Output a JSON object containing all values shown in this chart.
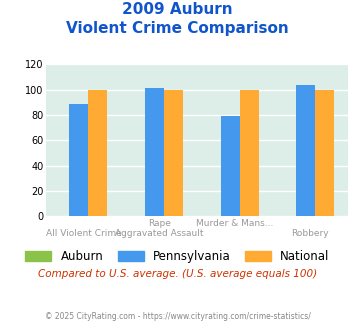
{
  "title_line1": "2009 Auburn",
  "title_line2": "Violent Crime Comparison",
  "x_top_labels": [
    "",
    "Rape",
    "Murder & Mans...",
    ""
  ],
  "x_bottom_labels": [
    "All Violent Crime",
    "Aggravated Assault",
    "",
    "Robbery"
  ],
  "groups": {
    "Auburn": [
      0,
      0,
      0,
      0
    ],
    "Pennsylvania": [
      89,
      101,
      79,
      104
    ],
    "National": [
      100,
      100,
      100,
      100
    ]
  },
  "colors": {
    "Auburn": "#8bc34a",
    "Pennsylvania": "#4499ee",
    "National": "#ffaa33"
  },
  "ylim": [
    0,
    120
  ],
  "yticks": [
    0,
    20,
    40,
    60,
    80,
    100,
    120
  ],
  "plot_bg_color": "#ddeee8",
  "title_color": "#1155cc",
  "footer_text": "© 2025 CityRating.com - https://www.cityrating.com/crime-statistics/",
  "compare_text": "Compared to U.S. average. (U.S. average equals 100)",
  "legend_labels": [
    "Auburn",
    "Pennsylvania",
    "National"
  ]
}
